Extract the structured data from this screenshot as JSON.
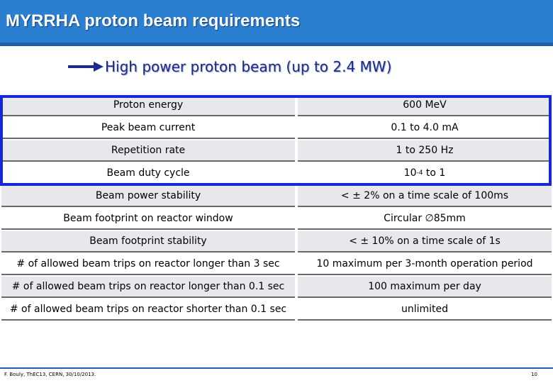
{
  "slide": {
    "title": "MYRRHA proton beam requirements",
    "subtitle": "High power proton beam (up to 2.4 MW)",
    "colors": {
      "title_bar": "#2a7fd1",
      "highlight_box": "#1428d6",
      "row_light": "#e8e8ec",
      "subtitle_text": "#1a2b8c"
    }
  },
  "table": {
    "rows": [
      {
        "param": "Proton energy",
        "value": "600 MeV",
        "shade": "light"
      },
      {
        "param": "Peak beam current",
        "value": "0.1 to 4.0 mA",
        "shade": "white"
      },
      {
        "param": "Repetition rate",
        "value": "1 to 250 Hz",
        "shade": "light"
      },
      {
        "param": "Beam duty cycle",
        "value_base": "10",
        "value_exp": "-4",
        "value_tail": " to 1",
        "shade": "white"
      },
      {
        "param": "Beam power stability",
        "value": "< ± 2% on a time scale of 100ms",
        "shade": "light"
      },
      {
        "param": "Beam footprint on reactor window",
        "value": "Circular ∅85mm",
        "shade": "white"
      },
      {
        "param": "Beam footprint stability",
        "value": "< ± 10% on a time scale of 1s",
        "shade": "light"
      },
      {
        "param": "# of allowed beam trips on reactor longer than 3 sec",
        "value": "10 maximum per 3-month operation period",
        "shade": "white"
      },
      {
        "param": "# of allowed beam trips on reactor longer than 0.1 sec",
        "value": "100 maximum per day",
        "shade": "light"
      },
      {
        "param": "# of allowed beam trips on reactor shorter than 0.1 sec",
        "value": "unlimited",
        "shade": "white"
      }
    ]
  },
  "footer": {
    "left": "F. Bouly, ThEC13, CERN, 30/10/2013.",
    "right": "10"
  }
}
